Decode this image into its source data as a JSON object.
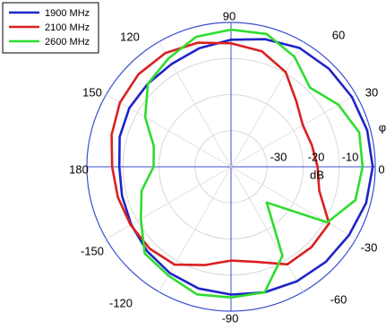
{
  "chart_data": {
    "type": "polar-line",
    "legend": {
      "placement": "top-left"
    },
    "angle_ticks": [
      {
        "label": "90",
        "angle": 90
      },
      {
        "label": "60",
        "angle": 60
      },
      {
        "label": "30",
        "angle": 30
      },
      {
        "label": "0",
        "angle": 0
      },
      {
        "label": "-30",
        "angle": -30
      },
      {
        "label": "-60",
        "angle": -60
      },
      {
        "label": "-90",
        "angle": -90
      },
      {
        "label": "-120",
        "angle": -120
      },
      {
        "label": "-150",
        "angle": -150
      },
      {
        "label": "180",
        "angle": 180
      },
      {
        "label": "150",
        "angle": 150
      },
      {
        "label": "120",
        "angle": 120
      }
    ],
    "radial_ticks": [
      {
        "label": "-30",
        "value": -30
      },
      {
        "label": "-20",
        "value": -20
      },
      {
        "label": "-10",
        "value": -10
      }
    ],
    "radial_axis_label": "dB",
    "angular_axis_label": "φ",
    "r_range": [
      -40,
      0
    ],
    "series": [
      {
        "name": "1900 MHz",
        "color": "#1f24c8",
        "points": [
          {
            "angle": 90,
            "db": -4.8
          },
          {
            "angle": 75,
            "db": -3.4
          },
          {
            "angle": 60,
            "db": -2.0
          },
          {
            "angle": 45,
            "db": -1.6
          },
          {
            "angle": 30,
            "db": -1.3
          },
          {
            "angle": 15,
            "db": -0.9
          },
          {
            "angle": 0,
            "db": -0.7
          },
          {
            "angle": -15,
            "db": -1.2
          },
          {
            "angle": -30,
            "db": -2.2
          },
          {
            "angle": -45,
            "db": -2.8
          },
          {
            "angle": -60,
            "db": -3.4
          },
          {
            "angle": -75,
            "db": -4.0
          },
          {
            "angle": -90,
            "db": -4.6
          },
          {
            "angle": -105,
            "db": -5.1
          },
          {
            "angle": -120,
            "db": -6.0
          },
          {
            "angle": -135,
            "db": -7.0
          },
          {
            "angle": -150,
            "db": -8.0
          },
          {
            "angle": -165,
            "db": -8.7
          },
          {
            "angle": 180,
            "db": -9.0
          },
          {
            "angle": 165,
            "db": -8.0
          },
          {
            "angle": 150,
            "db": -7.4
          },
          {
            "angle": 135,
            "db": -7.4
          },
          {
            "angle": 120,
            "db": -7.1
          },
          {
            "angle": 105,
            "db": -6.0
          },
          {
            "angle": 90,
            "db": -4.8
          }
        ]
      },
      {
        "name": "2100 MHz",
        "color": "#db2020",
        "points": [
          {
            "angle": 90,
            "db": -5.8
          },
          {
            "angle": 75,
            "db": -6.9
          },
          {
            "angle": 60,
            "db": -9.7
          },
          {
            "angle": 45,
            "db": -14.4
          },
          {
            "angle": 30,
            "db": -17.0
          },
          {
            "angle": 15,
            "db": -16.8
          },
          {
            "angle": 0,
            "db": -16.0
          },
          {
            "angle": -15,
            "db": -14.7
          },
          {
            "angle": -30,
            "db": -8.6
          },
          {
            "angle": -45,
            "db": -8.5
          },
          {
            "angle": -60,
            "db": -8.8
          },
          {
            "angle": -75,
            "db": -12.7
          },
          {
            "angle": -90,
            "db": -14.0
          },
          {
            "angle": -105,
            "db": -11.8
          },
          {
            "angle": -120,
            "db": -8.7
          },
          {
            "angle": -135,
            "db": -8.0
          },
          {
            "angle": -150,
            "db": -7.8
          },
          {
            "angle": -165,
            "db": -7.5
          },
          {
            "angle": 180,
            "db": -7.0
          },
          {
            "angle": 165,
            "db": -5.7
          },
          {
            "angle": 150,
            "db": -4.4
          },
          {
            "angle": 135,
            "db": -3.7
          },
          {
            "angle": 120,
            "db": -3.6
          },
          {
            "angle": 105,
            "db": -4.4
          },
          {
            "angle": 90,
            "db": -5.8
          }
        ]
      },
      {
        "name": "2600 MHz",
        "color": "#2fdc2f",
        "points": [
          {
            "angle": 90,
            "db": -2.0
          },
          {
            "angle": 75,
            "db": -1.9
          },
          {
            "angle": 60,
            "db": -4.8
          },
          {
            "angle": 45,
            "db": -9.0
          },
          {
            "angle": 30,
            "db": -5.6
          },
          {
            "angle": 15,
            "db": -3.2
          },
          {
            "angle": 0,
            "db": -3.5
          },
          {
            "angle": -15,
            "db": -4.3
          },
          {
            "angle": -30,
            "db": -9.2
          },
          {
            "angle": -45,
            "db": -26.0
          },
          {
            "angle": -60,
            "db": -11.5
          },
          {
            "angle": -75,
            "db": -4.0
          },
          {
            "angle": -90,
            "db": -3.8
          },
          {
            "angle": -105,
            "db": -3.4
          },
          {
            "angle": -120,
            "db": -5.2
          },
          {
            "angle": -135,
            "db": -6.1
          },
          {
            "angle": -150,
            "db": -11.1
          },
          {
            "angle": -165,
            "db": -14.3
          },
          {
            "angle": 180,
            "db": -18.5
          },
          {
            "angle": 165,
            "db": -17.8
          },
          {
            "angle": 150,
            "db": -12.5
          },
          {
            "angle": 135,
            "db": -7.4
          },
          {
            "angle": 120,
            "db": -5.3
          },
          {
            "angle": 105,
            "db": -2.7
          },
          {
            "angle": 90,
            "db": -2.0
          }
        ]
      }
    ]
  }
}
